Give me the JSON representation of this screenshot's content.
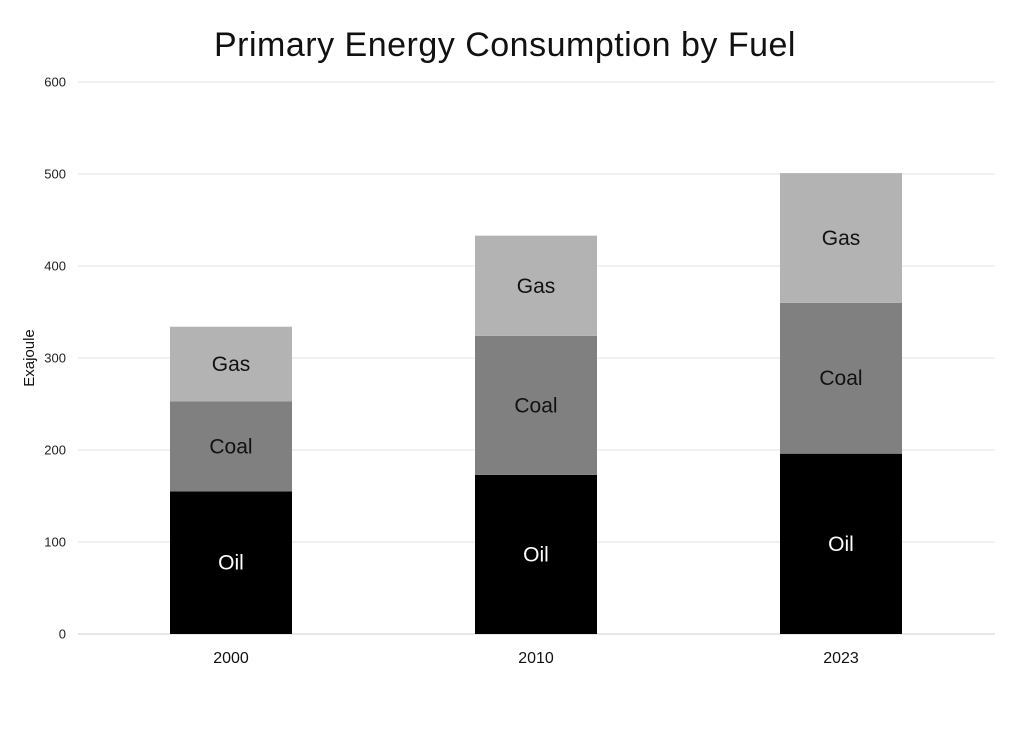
{
  "chart_data": {
    "type": "bar",
    "stacked": true,
    "title": "Primary Energy Consumption by Fuel",
    "xlabel": "",
    "ylabel": "Exajoule",
    "ylim": [
      0,
      600
    ],
    "yticks": [
      0,
      100,
      200,
      300,
      400,
      500,
      600
    ],
    "categories": [
      "2000",
      "2010",
      "2023"
    ],
    "grid": true,
    "series": [
      {
        "name": "Oil",
        "values": [
          155,
          173,
          196
        ],
        "color": "#000000",
        "label_color": "#ffffff"
      },
      {
        "name": "Coal",
        "values": [
          98,
          151,
          164
        ],
        "color": "#808080",
        "label_color": "#111111"
      },
      {
        "name": "Gas",
        "values": [
          81,
          109,
          141
        ],
        "color": "#b3b3b3",
        "label_color": "#111111"
      }
    ]
  }
}
